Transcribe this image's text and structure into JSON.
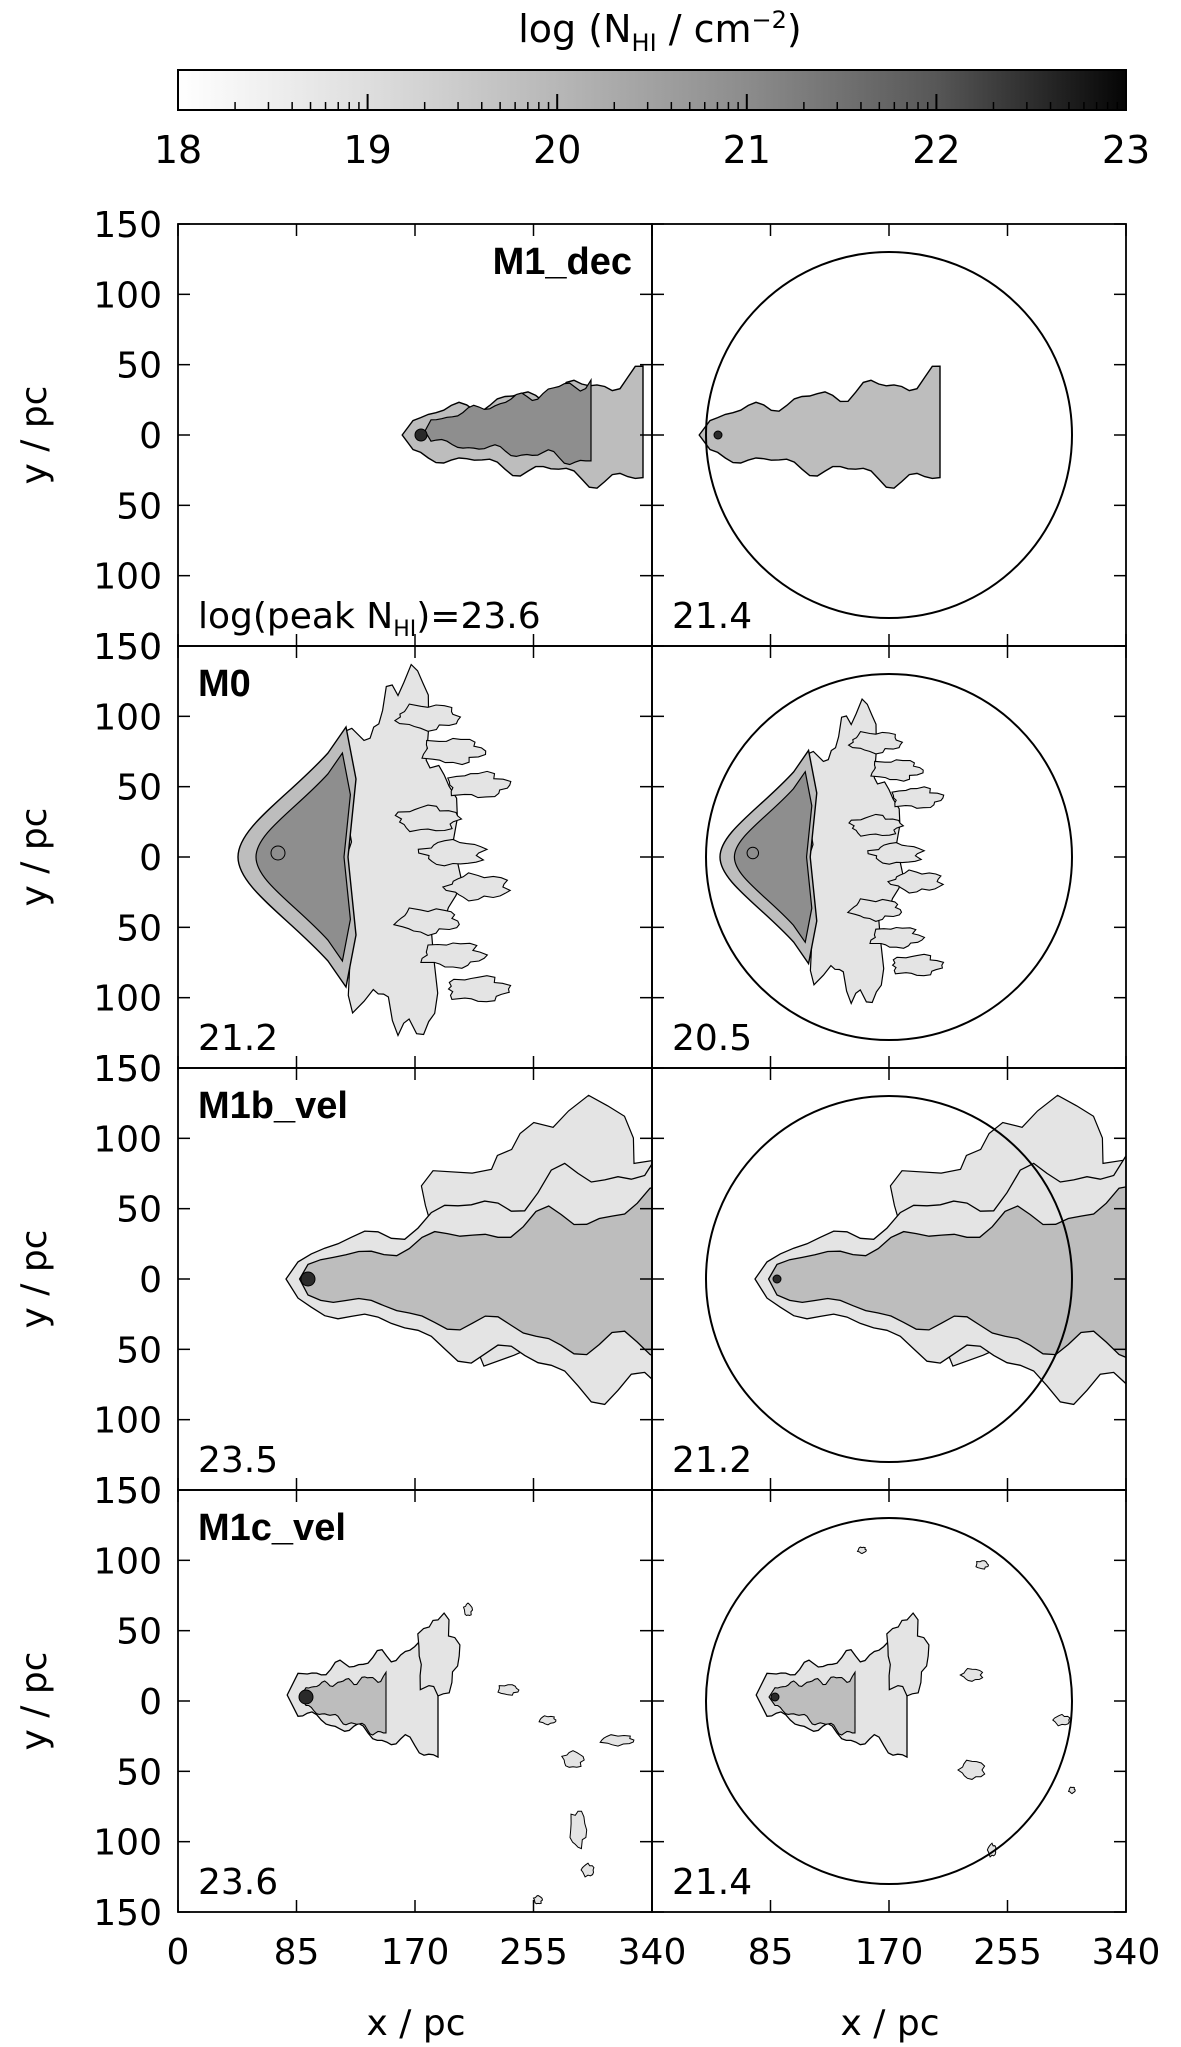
{
  "colorbar": {
    "title_main": "log (N",
    "title_sub": "HI",
    "title_unit": " / cm",
    "title_sup": "−2",
    "title_close": ")",
    "ticks": [
      "18",
      "19",
      "20",
      "21",
      "22",
      "23"
    ],
    "range": [
      18,
      23
    ],
    "scale": "grayscale"
  },
  "axes": {
    "y_label": "y / pc",
    "x_label": "x / pc",
    "y_ticks": [
      "150",
      "100",
      "50",
      "0",
      "50",
      "100",
      "150"
    ],
    "x_ticks_left": [
      "0",
      "85",
      "170",
      "255",
      "340"
    ],
    "x_ticks_right": [
      "85",
      "170",
      "255",
      "340"
    ]
  },
  "rows": [
    {
      "name": "M1_dec",
      "peak_prefix": "log(peak N",
      "peak_sub": "HI",
      "peak_left": ")=23.6",
      "peak_right": "21.4"
    },
    {
      "name": "M0",
      "peak_left": "21.2",
      "peak_right": "20.5"
    },
    {
      "name": "M1b_vel",
      "peak_left": "23.5",
      "peak_right": "21.2"
    },
    {
      "name": "M1c_vel",
      "peak_left": "23.6",
      "peak_right": "21.4"
    }
  ],
  "colors": {
    "background": "#ffffff",
    "ink": "#000000",
    "cloud_light": "#e4e4e4",
    "cloud_mid": "#bdbdbd",
    "cloud_dark": "#8e8e8e",
    "core": "#2a2a2a"
  }
}
